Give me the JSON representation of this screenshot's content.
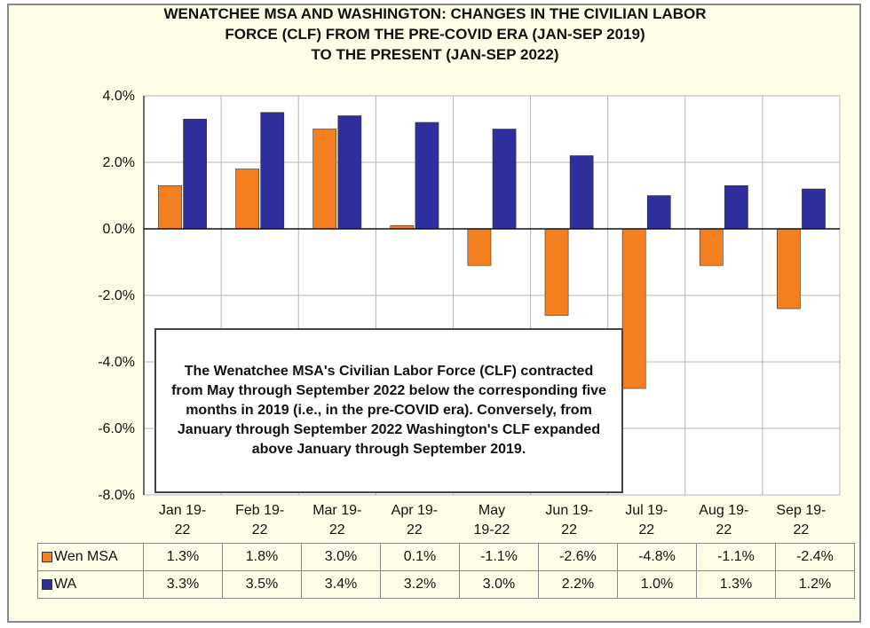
{
  "title_lines": [
    "WENATCHEE  MSA AND WASHINGTON:  CHANGES  IN THE CIVILIAN LABOR",
    "FORCE  (CLF) FROM THE  PRE-COVID ERA  (JAN-SEP 2019)",
    "TO THE PRESENT  (JAN-SEP 2022)"
  ],
  "annotation": "The Wenatchee MSA's Civilian Labor Force (CLF) contracted from May through September 2022 below the corresponding five months in 2019 (i.e., in the pre-COVID era). Conversely, from January through September 2022 Washington's CLF expanded above January through September 2019.",
  "chart_data": {
    "type": "bar",
    "categories": [
      [
        "Jan 19-",
        "22"
      ],
      [
        "Feb 19-",
        "22"
      ],
      [
        "Mar 19-",
        "22"
      ],
      [
        "Apr 19-",
        "22"
      ],
      [
        "May",
        "19-22"
      ],
      [
        "Jun 19-",
        "22"
      ],
      [
        "Jul 19-",
        "22"
      ],
      [
        "Aug 19-",
        "22"
      ],
      [
        "Sep 19-",
        "22"
      ]
    ],
    "series": [
      {
        "name": "Wen MSA",
        "color": "#f47f20",
        "values": [
          1.3,
          1.8,
          3.0,
          0.1,
          -1.1,
          -2.6,
          -4.8,
          -1.1,
          -2.4
        ],
        "labels": [
          "1.3%",
          "1.8%",
          "3.0%",
          "0.1%",
          "-1.1%",
          "-2.6%",
          "-4.8%",
          "-1.1%",
          "-2.4%"
        ]
      },
      {
        "name": "WA",
        "color": "#2e2e9c",
        "values": [
          3.3,
          3.5,
          3.4,
          3.2,
          3.0,
          2.2,
          1.0,
          1.3,
          1.2
        ],
        "labels": [
          "3.3%",
          "3.5%",
          "3.4%",
          "3.2%",
          "3.0%",
          "2.2%",
          "1.0%",
          "1.3%",
          "1.2%"
        ]
      }
    ],
    "y_ticks": [
      "4.0%",
      "2.0%",
      "0.0%",
      "-2.0%",
      "-4.0%",
      "-6.0%",
      "-8.0%"
    ],
    "y_tick_values": [
      4,
      2,
      0,
      -2,
      -4,
      -6,
      -8
    ],
    "ylim": [
      -8,
      4
    ],
    "grid": true,
    "legend": "data table below chart",
    "plot_background": "#ffffff",
    "grid_color": "#b5b5b5"
  }
}
